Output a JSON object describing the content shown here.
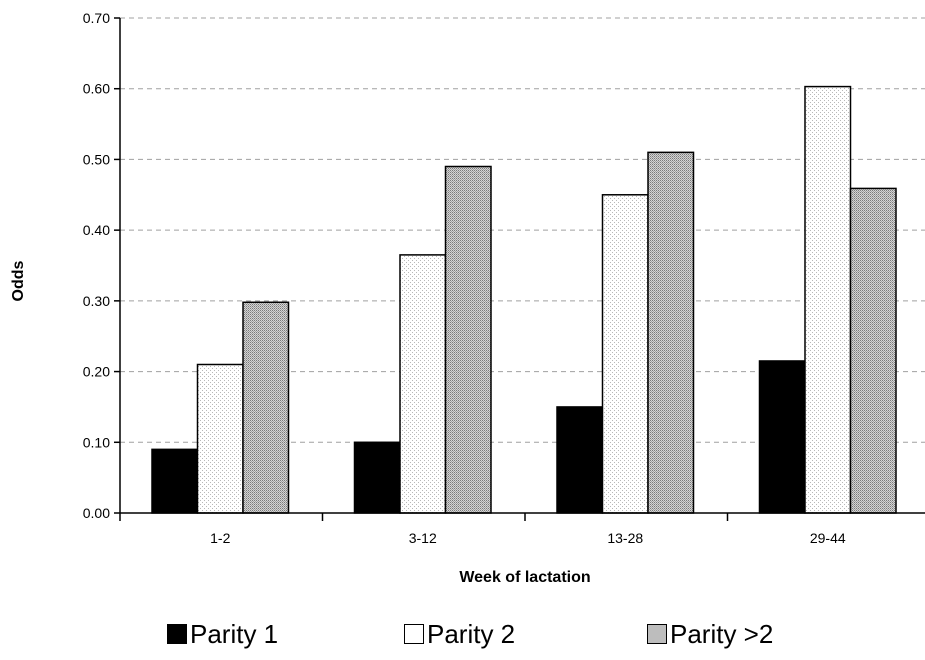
{
  "chart_data": {
    "type": "bar",
    "categories": [
      "1-2",
      "3-12",
      "13-28",
      "29-44"
    ],
    "series": [
      {
        "name": "Parity 1",
        "values": [
          0.09,
          0.1,
          0.15,
          0.215
        ],
        "fill": "#000000",
        "pattern": "solid"
      },
      {
        "name": "Parity 2",
        "values": [
          0.21,
          0.365,
          0.45,
          0.603
        ],
        "fill": "#ffffff",
        "pattern": "light-dots"
      },
      {
        "name": "Parity >2",
        "values": [
          0.298,
          0.49,
          0.51,
          0.459
        ],
        "fill": "#bdbdbd",
        "pattern": "dense-dots"
      }
    ],
    "xlabel": "Week of lactation",
    "ylabel": "Odds",
    "ylim": [
      0,
      0.7
    ],
    "yticks": [
      "0.00",
      "0.10",
      "0.20",
      "0.30",
      "0.40",
      "0.50",
      "0.60",
      "0.70"
    ],
    "grid": true,
    "grid_style": "dashed horizontal",
    "legend_position": "bottom"
  }
}
